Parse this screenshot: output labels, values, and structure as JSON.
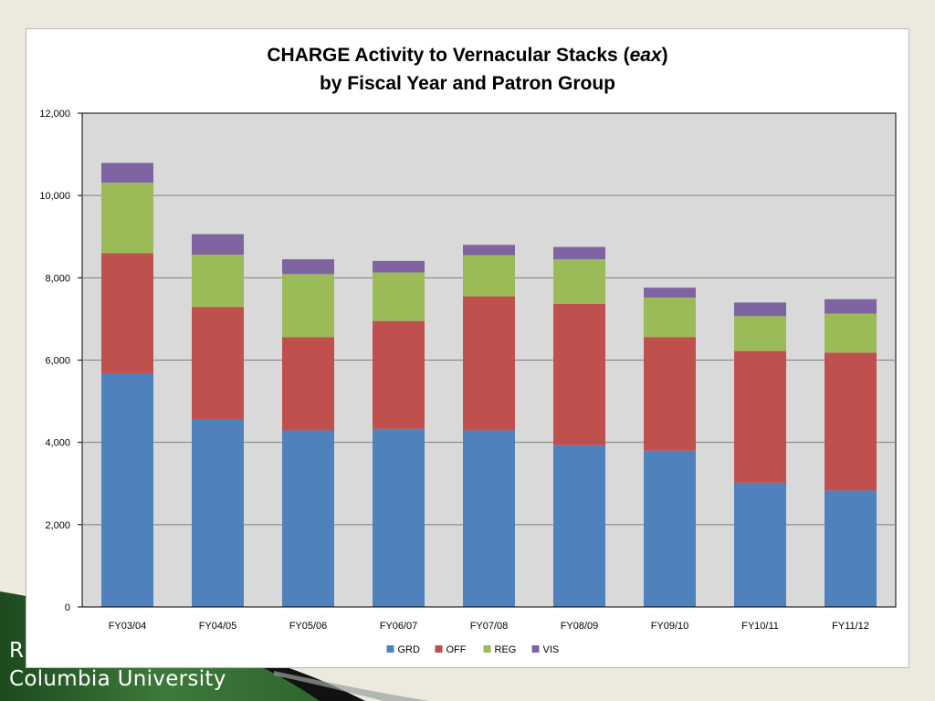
{
  "footer": {
    "line1": "R",
    "line2": "Columbia University"
  },
  "chart_data": {
    "type": "bar",
    "stacked": true,
    "title_line1_pre": "CHARGE Activity to Vernacular Stacks (",
    "title_line1_italic": "eax",
    "title_line1_post": ")",
    "title_line2": "by Fiscal Year and Patron Group",
    "categories": [
      "FY03/04",
      "FY04/05",
      "FY05/06",
      "FY06/07",
      "FY07/08",
      "FY08/09",
      "FY09/10",
      "FY10/11",
      "FY11/12"
    ],
    "series": [
      {
        "name": "GRD",
        "color": "#4f81bd",
        "values": [
          5680,
          4570,
          4290,
          4330,
          4290,
          3930,
          3800,
          3020,
          2830
        ]
      },
      {
        "name": "OFF",
        "color": "#c0504d",
        "values": [
          2920,
          2720,
          2270,
          2620,
          3260,
          3440,
          2760,
          3200,
          3350
        ]
      },
      {
        "name": "REG",
        "color": "#9bbb59",
        "values": [
          1710,
          1270,
          1530,
          1180,
          1000,
          1080,
          960,
          850,
          950
        ]
      },
      {
        "name": "VIS",
        "color": "#8064a2",
        "values": [
          480,
          500,
          360,
          280,
          250,
          300,
          240,
          330,
          350
        ]
      }
    ],
    "ylim": [
      0,
      12000
    ],
    "yticks": [
      0,
      2000,
      4000,
      6000,
      8000,
      10000,
      12000
    ],
    "ytick_labels": [
      "0",
      "2,000",
      "4,000",
      "6,000",
      "8,000",
      "10,000",
      "12,000"
    ],
    "grid": true,
    "legend": "bottom",
    "plot_bg": "#d9d9d9"
  }
}
